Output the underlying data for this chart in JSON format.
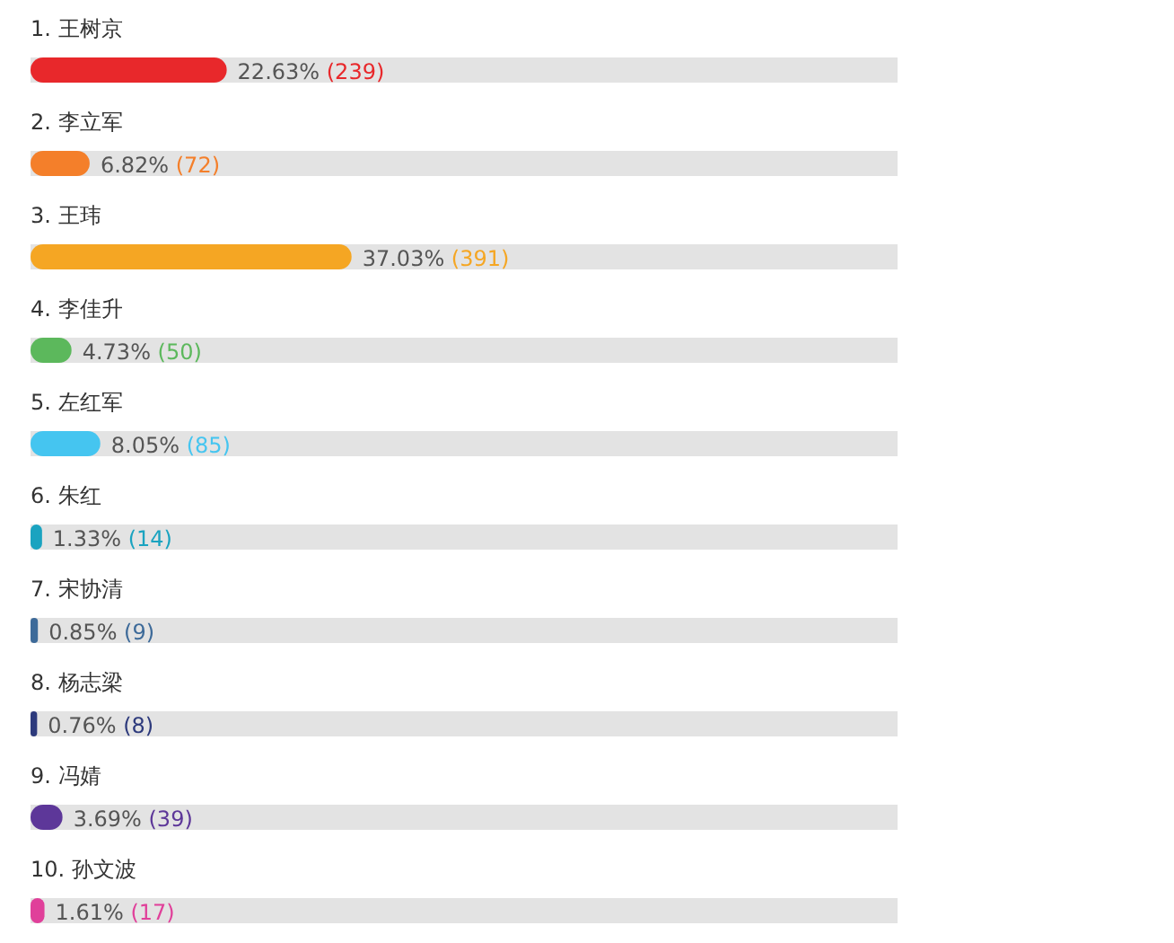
{
  "chart_data": {
    "type": "bar",
    "orientation": "horizontal",
    "categories": [
      "1. 王树京",
      "2. 李立军",
      "3. 王玮",
      "4. 李佳升",
      "5. 左红军",
      "6. 朱红",
      "7. 宋协清",
      "8. 杨志梁",
      "9. 冯婧",
      "10. 孙文波"
    ],
    "values": [
      22.63,
      6.82,
      37.03,
      4.73,
      8.05,
      1.33,
      0.85,
      0.76,
      3.69,
      1.61
    ],
    "colors": [
      "#e8282b",
      "#f47f2a",
      "#f5a623",
      "#5cb85c",
      "#45c5f0",
      "#1aa3c0",
      "#3d6a99",
      "#2d3a7c",
      "#5d3799",
      "#e0409a"
    ],
    "value_labels": [
      "22.63% (239)",
      "6.82% (72)",
      "37.03% (391)",
      "4.73% (50)",
      "8.05% (85)",
      "1.33% (14)",
      "0.85% (9)",
      "0.76% (8)",
      "3.69% (39)",
      "1.61% (17)"
    ],
    "xlim": [
      0,
      100
    ]
  }
}
